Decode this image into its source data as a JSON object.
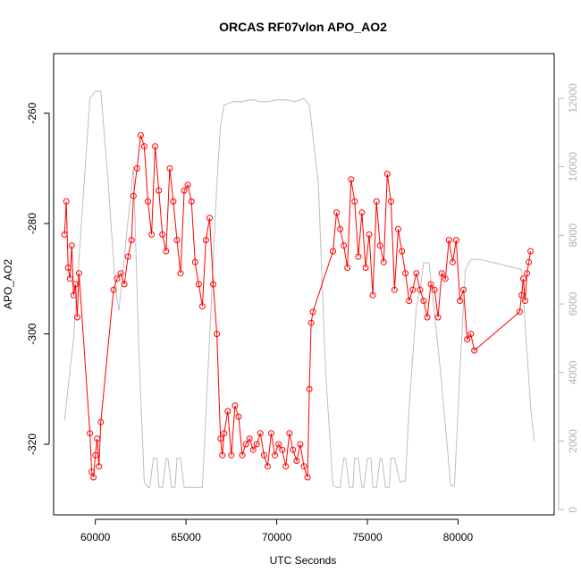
{
  "chart_data": {
    "type": "line",
    "title": "ORCAS RF07vlon APO_AO2",
    "xlabel": "UTC Seconds",
    "ylabel": "APO_AO2",
    "xlim": [
      57700,
      85300
    ],
    "ylim": [
      -332.8,
      -249.2
    ],
    "y2lim": [
      -150,
      13300
    ],
    "x_ticks": [
      60000,
      65000,
      70000,
      75000,
      80000
    ],
    "x_tick_labels": [
      "60000",
      "65000",
      "70000",
      "75000",
      "80000"
    ],
    "y_ticks": [
      -320,
      -300,
      -280,
      -260
    ],
    "y_tick_labels": [
      "-320",
      "-300",
      "-280",
      "-260"
    ],
    "y2_ticks": [
      0,
      2000,
      4000,
      6000,
      8000,
      10000,
      12000
    ],
    "y2_tick_labels": [
      "0",
      "2000",
      "4000",
      "6000",
      "8000",
      "10000",
      "12000"
    ],
    "colors": {
      "apo": "#ff0000",
      "altitude": "#bebebe",
      "right_axis": "#b3b3b3"
    },
    "series": [
      {
        "axis": "left",
        "style": "line+open-circles",
        "x": [
          58300,
          58400,
          58500,
          58600,
          58700,
          58800,
          58900,
          59000,
          59100,
          59700,
          59800,
          59900,
          60000,
          60100,
          60200,
          60300,
          61000,
          61200,
          61400,
          61600,
          61800,
          62000,
          62100,
          62300,
          62500,
          62700,
          62900,
          63100,
          63300,
          63500,
          63700,
          63900,
          64100,
          64300,
          64500,
          64700,
          64900,
          65100,
          65300,
          65500,
          65700,
          65900,
          66100,
          66300,
          66500,
          66700,
          66900,
          67000,
          67100,
          67300,
          67500,
          67700,
          67900,
          68100,
          68300,
          68500,
          68700,
          68900,
          69100,
          69300,
          69500,
          69700,
          69900,
          70100,
          70300,
          70500,
          70700,
          70900,
          71100,
          71300,
          71500,
          71700,
          71800,
          71900,
          72000,
          73100,
          73300,
          73500,
          73700,
          73900,
          74100,
          74300,
          74500,
          74700,
          74900,
          75100,
          75300,
          75500,
          75700,
          75900,
          76100,
          76300,
          76500,
          76700,
          76900,
          77100,
          77300,
          77500,
          77700,
          77900,
          78100,
          78300,
          78500,
          78700,
          78900,
          79100,
          79300,
          79500,
          79700,
          79900,
          80100,
          80300,
          80500,
          80700,
          80900,
          83400,
          83500,
          83600,
          83700,
          83800,
          83900,
          84000
        ],
        "y": [
          -282,
          -276,
          -288,
          -290,
          -284,
          -293,
          -291,
          -297,
          -289,
          -318,
          -325,
          -326,
          -322,
          -319,
          -324,
          -316,
          -292,
          -290,
          -289,
          -291,
          -286,
          -283,
          -275,
          -270,
          -264,
          -266,
          -276,
          -282,
          -266,
          -274,
          -282,
          -285,
          -270,
          -276,
          -283,
          -289,
          -274,
          -273,
          -276,
          -287,
          -291,
          -295,
          -283,
          -279,
          -291,
          -300,
          -319,
          -322,
          -318,
          -314,
          -322,
          -313,
          -315,
          -322,
          -320,
          -319,
          -321,
          -320,
          -318,
          -322,
          -324,
          -318,
          -322,
          -320,
          -321,
          -324,
          -318,
          -321,
          -323,
          -320,
          -324,
          -326,
          -310,
          -298,
          -296,
          -285,
          -278,
          -281,
          -284,
          -288,
          -272,
          -276,
          -286,
          -278,
          -288,
          -282,
          -293,
          -276,
          -284,
          -287,
          -271,
          -276,
          -292,
          -281,
          -285,
          -289,
          -294,
          -292,
          -289,
          -292,
          -294,
          -297,
          -291,
          -292,
          -297,
          -289,
          -290,
          -283,
          -287,
          -283,
          -294,
          -292,
          -301,
          -300,
          -303,
          -296,
          -293,
          -290,
          -294,
          -289,
          -287,
          -285
        ]
      },
      {
        "axis": "right",
        "style": "line",
        "x": [
          58300,
          58800,
          59300,
          59700,
          60000,
          60300,
          60700,
          61100,
          61300,
          62100,
          62400,
          62700,
          62900,
          63000,
          63200,
          63400,
          63500,
          63700,
          63900,
          64000,
          64200,
          64400,
          64500,
          64700,
          64900,
          65100,
          65500,
          65900,
          66300,
          66700,
          66900,
          67100,
          67600,
          68100,
          68500,
          68800,
          69000,
          69500,
          70000,
          70500,
          71000,
          71300,
          71500,
          71800,
          72300,
          72700,
          73100,
          73300,
          73500,
          73700,
          73800,
          74000,
          74200,
          74300,
          74500,
          74700,
          74800,
          75000,
          75200,
          75300,
          75500,
          75700,
          75800,
          76000,
          76200,
          76300,
          76500,
          76800,
          77100,
          77300,
          77700,
          77900,
          78100,
          78400,
          79000,
          79600,
          79800,
          80100,
          80400,
          80700,
          80900,
          81200,
          82000,
          83500,
          84000,
          84200
        ],
        "y": [
          2600,
          5000,
          8900,
          12000,
          12200,
          12200,
          9600,
          6500,
          5800,
          10000,
          4600,
          800,
          650,
          650,
          1500,
          1500,
          650,
          650,
          1500,
          1500,
          650,
          650,
          1500,
          1500,
          650,
          650,
          650,
          650,
          5000,
          9500,
          11200,
          11800,
          11900,
          11900,
          11950,
          11950,
          11900,
          11900,
          11950,
          11950,
          11900,
          11950,
          12000,
          11800,
          9500,
          4000,
          700,
          650,
          650,
          1500,
          1500,
          650,
          650,
          1500,
          1500,
          650,
          650,
          1500,
          1500,
          650,
          650,
          1500,
          1500,
          650,
          650,
          1500,
          1500,
          800,
          850,
          3000,
          5900,
          6400,
          7200,
          7200,
          4200,
          700,
          700,
          4000,
          7000,
          7300,
          7300,
          7300,
          7200,
          7000,
          3000,
          2000
        ]
      }
    ],
    "grid": false,
    "legend": "none"
  }
}
